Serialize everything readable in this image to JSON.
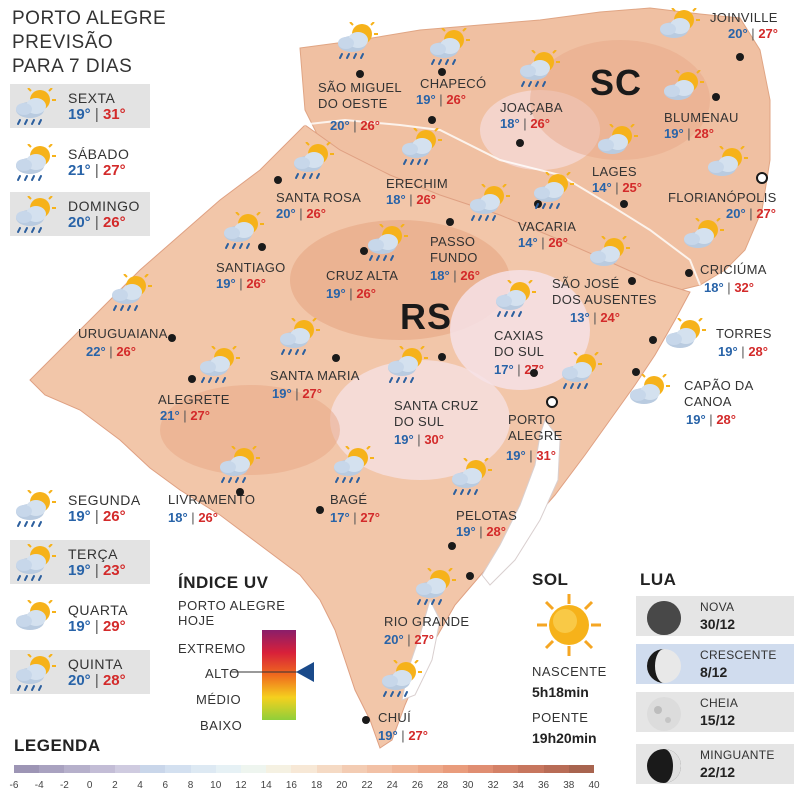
{
  "header": {
    "line1": "PORTO ALEGRE",
    "line2": "PREVISÃO",
    "line3": "PARA 7 DIAS"
  },
  "forecast": [
    {
      "day": "SEXTA",
      "min": "19°",
      "max": "31°",
      "icon": "sun-cloud-rain-icon"
    },
    {
      "day": "SÁBADO",
      "min": "21°",
      "max": "27°",
      "icon": "sun-cloud-rain-icon"
    },
    {
      "day": "DOMINGO",
      "min": "20°",
      "max": "26°",
      "icon": "sun-cloud-rain-icon"
    },
    {
      "day": "SEGUNDA",
      "min": "19°",
      "max": "26°",
      "icon": "sun-cloud-rain-icon"
    },
    {
      "day": "TERÇA",
      "min": "19°",
      "max": "23°",
      "icon": "sun-cloud-rain-icon"
    },
    {
      "day": "QUARTA",
      "min": "19°",
      "max": "29°",
      "icon": "sun-cloud-icon"
    },
    {
      "day": "QUINTA",
      "min": "20°",
      "max": "28°",
      "icon": "sun-cloud-rain-icon"
    }
  ],
  "states": {
    "sc": "SC",
    "rs": "RS"
  },
  "cities": [
    {
      "name": "SÃO MIGUEL\nDO OESTE",
      "min": "20°",
      "max": "26°"
    },
    {
      "name": "CHAPECÓ",
      "min": "19°",
      "max": "26°"
    },
    {
      "name": "JOAÇABA",
      "min": "18°",
      "max": "26°"
    },
    {
      "name": "JOINVILLE",
      "min": "20°",
      "max": "27°"
    },
    {
      "name": "BLUMENAU",
      "min": "19°",
      "max": "28°"
    },
    {
      "name": "LAGES",
      "min": "14°",
      "max": "25°"
    },
    {
      "name": "FLORIANÓPOLIS",
      "min": "20°",
      "max": "27°"
    },
    {
      "name": "SANTA ROSA",
      "min": "20°",
      "max": "26°"
    },
    {
      "name": "ERECHIM",
      "min": "18°",
      "max": "26°"
    },
    {
      "name": "VACARIA",
      "min": "14°",
      "max": "26°"
    },
    {
      "name": "SANTIAGO",
      "min": "19°",
      "max": "26°"
    },
    {
      "name": "CRUZ ALTA",
      "min": "19°",
      "max": "26°"
    },
    {
      "name": "PASSO\nFUNDO",
      "min": "18°",
      "max": "26°"
    },
    {
      "name": "SÃO JOSÉ\nDOS AUSENTES",
      "min": "13°",
      "max": "24°"
    },
    {
      "name": "CRICIÚMA",
      "min": "18°",
      "max": "32°"
    },
    {
      "name": "URUGUAIANA",
      "min": "22°",
      "max": "26°"
    },
    {
      "name": "CAXIAS\nDO SUL",
      "min": "17°",
      "max": "27°"
    },
    {
      "name": "TORRES",
      "min": "19°",
      "max": "28°"
    },
    {
      "name": "SANTA MARIA",
      "min": "19°",
      "max": "27°"
    },
    {
      "name": "ALEGRETE",
      "min": "21°",
      "max": "27°"
    },
    {
      "name": "CAPÃO DA\nCANOA",
      "min": "19°",
      "max": "28°"
    },
    {
      "name": "SANTA CRUZ\nDO SUL",
      "min": "19°",
      "max": "30°"
    },
    {
      "name": "PORTO\nALEGRE",
      "min": "19°",
      "max": "31°"
    },
    {
      "name": "LIVRAMENTO",
      "min": "18°",
      "max": "26°"
    },
    {
      "name": "BAGÉ",
      "min": "17°",
      "max": "27°"
    },
    {
      "name": "PELOTAS",
      "min": "19°",
      "max": "28°"
    },
    {
      "name": "RIO GRANDE",
      "min": "20°",
      "max": "27°"
    },
    {
      "name": "CHUÍ",
      "min": "19°",
      "max": "27°"
    }
  ],
  "uv": {
    "title": "ÍNDICE UV",
    "subtitle1": "PORTO ALEGRE",
    "subtitle2": "HOJE",
    "levels": [
      "EXTREMO",
      "ALTO",
      "MÉDIO",
      "BAIXO"
    ],
    "current_level": "ALTO"
  },
  "sun": {
    "title": "SOL",
    "rise_label": "NASCENTE",
    "rise": "5h18min",
    "set_label": "POENTE",
    "set": "19h20min"
  },
  "moon": {
    "title": "LUA",
    "phases": [
      {
        "name": "NOVA",
        "date": "30/12",
        "icon": "new-moon-icon"
      },
      {
        "name": "CRESCENTE",
        "date": "8/12",
        "icon": "waxing-moon-icon"
      },
      {
        "name": "CHEIA",
        "date": "15/12",
        "icon": "full-moon-icon"
      },
      {
        "name": "MINGUANTE",
        "date": "22/12",
        "icon": "waning-moon-icon"
      }
    ]
  },
  "legend": {
    "title": "LEGENDA",
    "ticks": [
      "-6",
      "-4",
      "-2",
      "0",
      "2",
      "4",
      "6",
      "8",
      "10",
      "12",
      "14",
      "16",
      "18",
      "20",
      "22",
      "24",
      "26",
      "28",
      "30",
      "32",
      "34",
      "36",
      "38",
      "40"
    ]
  },
  "colors": {
    "min_temp": "#2863a8",
    "max_temp": "#d32a2a",
    "land": "#f2c6a9",
    "highlight": "#d0dcee"
  }
}
